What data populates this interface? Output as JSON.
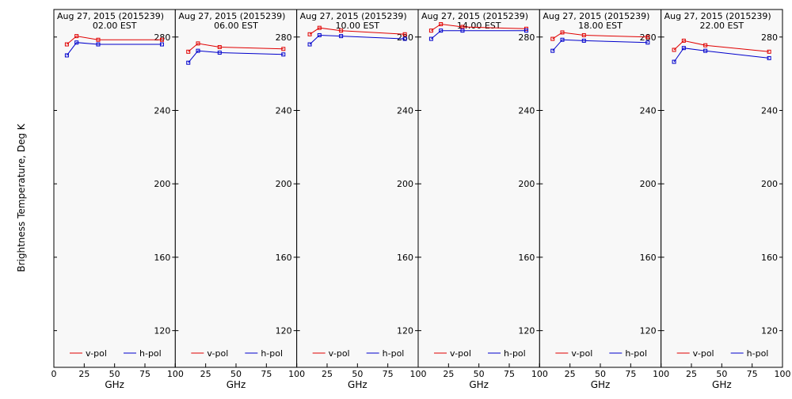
{
  "y_axis_label": "Brightness Temperature, Deg K",
  "colors": {
    "v_pol": "#e00000",
    "h_pol": "#0000cc",
    "panel_bg": "#f8f8f8"
  },
  "chart_data": [
    {
      "type": "line",
      "title": "Aug 27, 2015 (2015239)",
      "subtitle": "02.00 EST",
      "xlabel": "GHz",
      "ylabel": "Brightness Temperature, Deg K",
      "xlim": [
        0,
        100
      ],
      "ylim": [
        100,
        295
      ],
      "x_ticks": [
        "0",
        "25",
        "50",
        "75",
        "100"
      ],
      "y_ticks": [
        "120",
        "160",
        "200",
        "240",
        "280"
      ],
      "legend": "bottom",
      "series": [
        {
          "name": "v-pol",
          "x": [
            10.7,
            18.7,
            36.5,
            89.0
          ],
          "values": [
            276,
            280.5,
            278.5,
            278.5
          ]
        },
        {
          "name": "h-pol",
          "x": [
            10.7,
            18.7,
            36.5,
            89.0
          ],
          "values": [
            270,
            277,
            276,
            276
          ]
        }
      ]
    },
    {
      "type": "line",
      "title": "Aug 27, 2015 (2015239)",
      "subtitle": "06.00 EST",
      "xlabel": "GHz",
      "ylabel": "Brightness Temperature, Deg K",
      "xlim": [
        0,
        100
      ],
      "ylim": [
        100,
        295
      ],
      "x_ticks": [
        "0",
        "25",
        "50",
        "75",
        "100"
      ],
      "y_ticks": [
        "120",
        "160",
        "200",
        "240",
        "280"
      ],
      "legend": "bottom",
      "series": [
        {
          "name": "v-pol",
          "x": [
            10.7,
            18.7,
            36.5,
            89.0
          ],
          "values": [
            272,
            276.5,
            274.5,
            273.5
          ]
        },
        {
          "name": "h-pol",
          "x": [
            10.7,
            18.7,
            36.5,
            89.0
          ],
          "values": [
            266,
            272.5,
            271.5,
            270.5
          ]
        }
      ]
    },
    {
      "type": "line",
      "title": "Aug 27, 2015 (2015239)",
      "subtitle": "10.00 EST",
      "xlabel": "GHz",
      "ylabel": "Brightness Temperature, Deg K",
      "xlim": [
        0,
        100
      ],
      "ylim": [
        100,
        295
      ],
      "x_ticks": [
        "0",
        "25",
        "50",
        "75",
        "100"
      ],
      "y_ticks": [
        "120",
        "160",
        "200",
        "240",
        "280"
      ],
      "legend": "bottom",
      "series": [
        {
          "name": "v-pol",
          "x": [
            10.7,
            18.7,
            36.5,
            89.0
          ],
          "values": [
            281.5,
            285,
            283.5,
            281.5
          ]
        },
        {
          "name": "h-pol",
          "x": [
            10.7,
            18.7,
            36.5,
            89.0
          ],
          "values": [
            276,
            281,
            280.5,
            279
          ]
        }
      ]
    },
    {
      "type": "line",
      "title": "Aug 27, 2015 (2015239)",
      "subtitle": "14.00 EST",
      "xlabel": "GHz",
      "ylabel": "Brightness Temperature, Deg K",
      "xlim": [
        0,
        100
      ],
      "ylim": [
        100,
        295
      ],
      "x_ticks": [
        "0",
        "25",
        "50",
        "75",
        "100"
      ],
      "y_ticks": [
        "120",
        "160",
        "200",
        "240",
        "280"
      ],
      "legend": "bottom",
      "series": [
        {
          "name": "v-pol",
          "x": [
            10.7,
            18.7,
            36.5,
            89.0
          ],
          "values": [
            283.5,
            287,
            285.5,
            284.5
          ]
        },
        {
          "name": "h-pol",
          "x": [
            10.7,
            18.7,
            36.5,
            89.0
          ],
          "values": [
            279,
            283.5,
            283.5,
            283.5
          ]
        }
      ]
    },
    {
      "type": "line",
      "title": "Aug 27, 2015 (2015239)",
      "subtitle": "18.00 EST",
      "xlabel": "GHz",
      "ylabel": "Brightness Temperature, Deg K",
      "xlim": [
        0,
        100
      ],
      "ylim": [
        100,
        295
      ],
      "x_ticks": [
        "0",
        "25",
        "50",
        "75",
        "100"
      ],
      "y_ticks": [
        "120",
        "160",
        "200",
        "240",
        "280"
      ],
      "legend": "bottom",
      "series": [
        {
          "name": "v-pol",
          "x": [
            10.7,
            18.7,
            36.5,
            89.0
          ],
          "values": [
            279,
            282.5,
            281,
            280
          ]
        },
        {
          "name": "h-pol",
          "x": [
            10.7,
            18.7,
            36.5,
            89.0
          ],
          "values": [
            272.5,
            278.5,
            278,
            277
          ]
        }
      ]
    },
    {
      "type": "line",
      "title": "Aug 27, 2015 (2015239)",
      "subtitle": "22.00 EST",
      "xlabel": "GHz",
      "ylabel": "Brightness Temperature, Deg K",
      "xlim": [
        0,
        100
      ],
      "ylim": [
        100,
        295
      ],
      "x_ticks": [
        "0",
        "25",
        "50",
        "75",
        "100"
      ],
      "y_ticks": [
        "120",
        "160",
        "200",
        "240",
        "280"
      ],
      "legend": "bottom",
      "series": [
        {
          "name": "v-pol",
          "x": [
            10.7,
            18.7,
            36.5,
            89.0
          ],
          "values": [
            273,
            278,
            275.5,
            272
          ]
        },
        {
          "name": "h-pol",
          "x": [
            10.7,
            18.7,
            36.5,
            89.0
          ],
          "values": [
            266.5,
            274,
            272.5,
            268.5
          ]
        }
      ]
    }
  ]
}
